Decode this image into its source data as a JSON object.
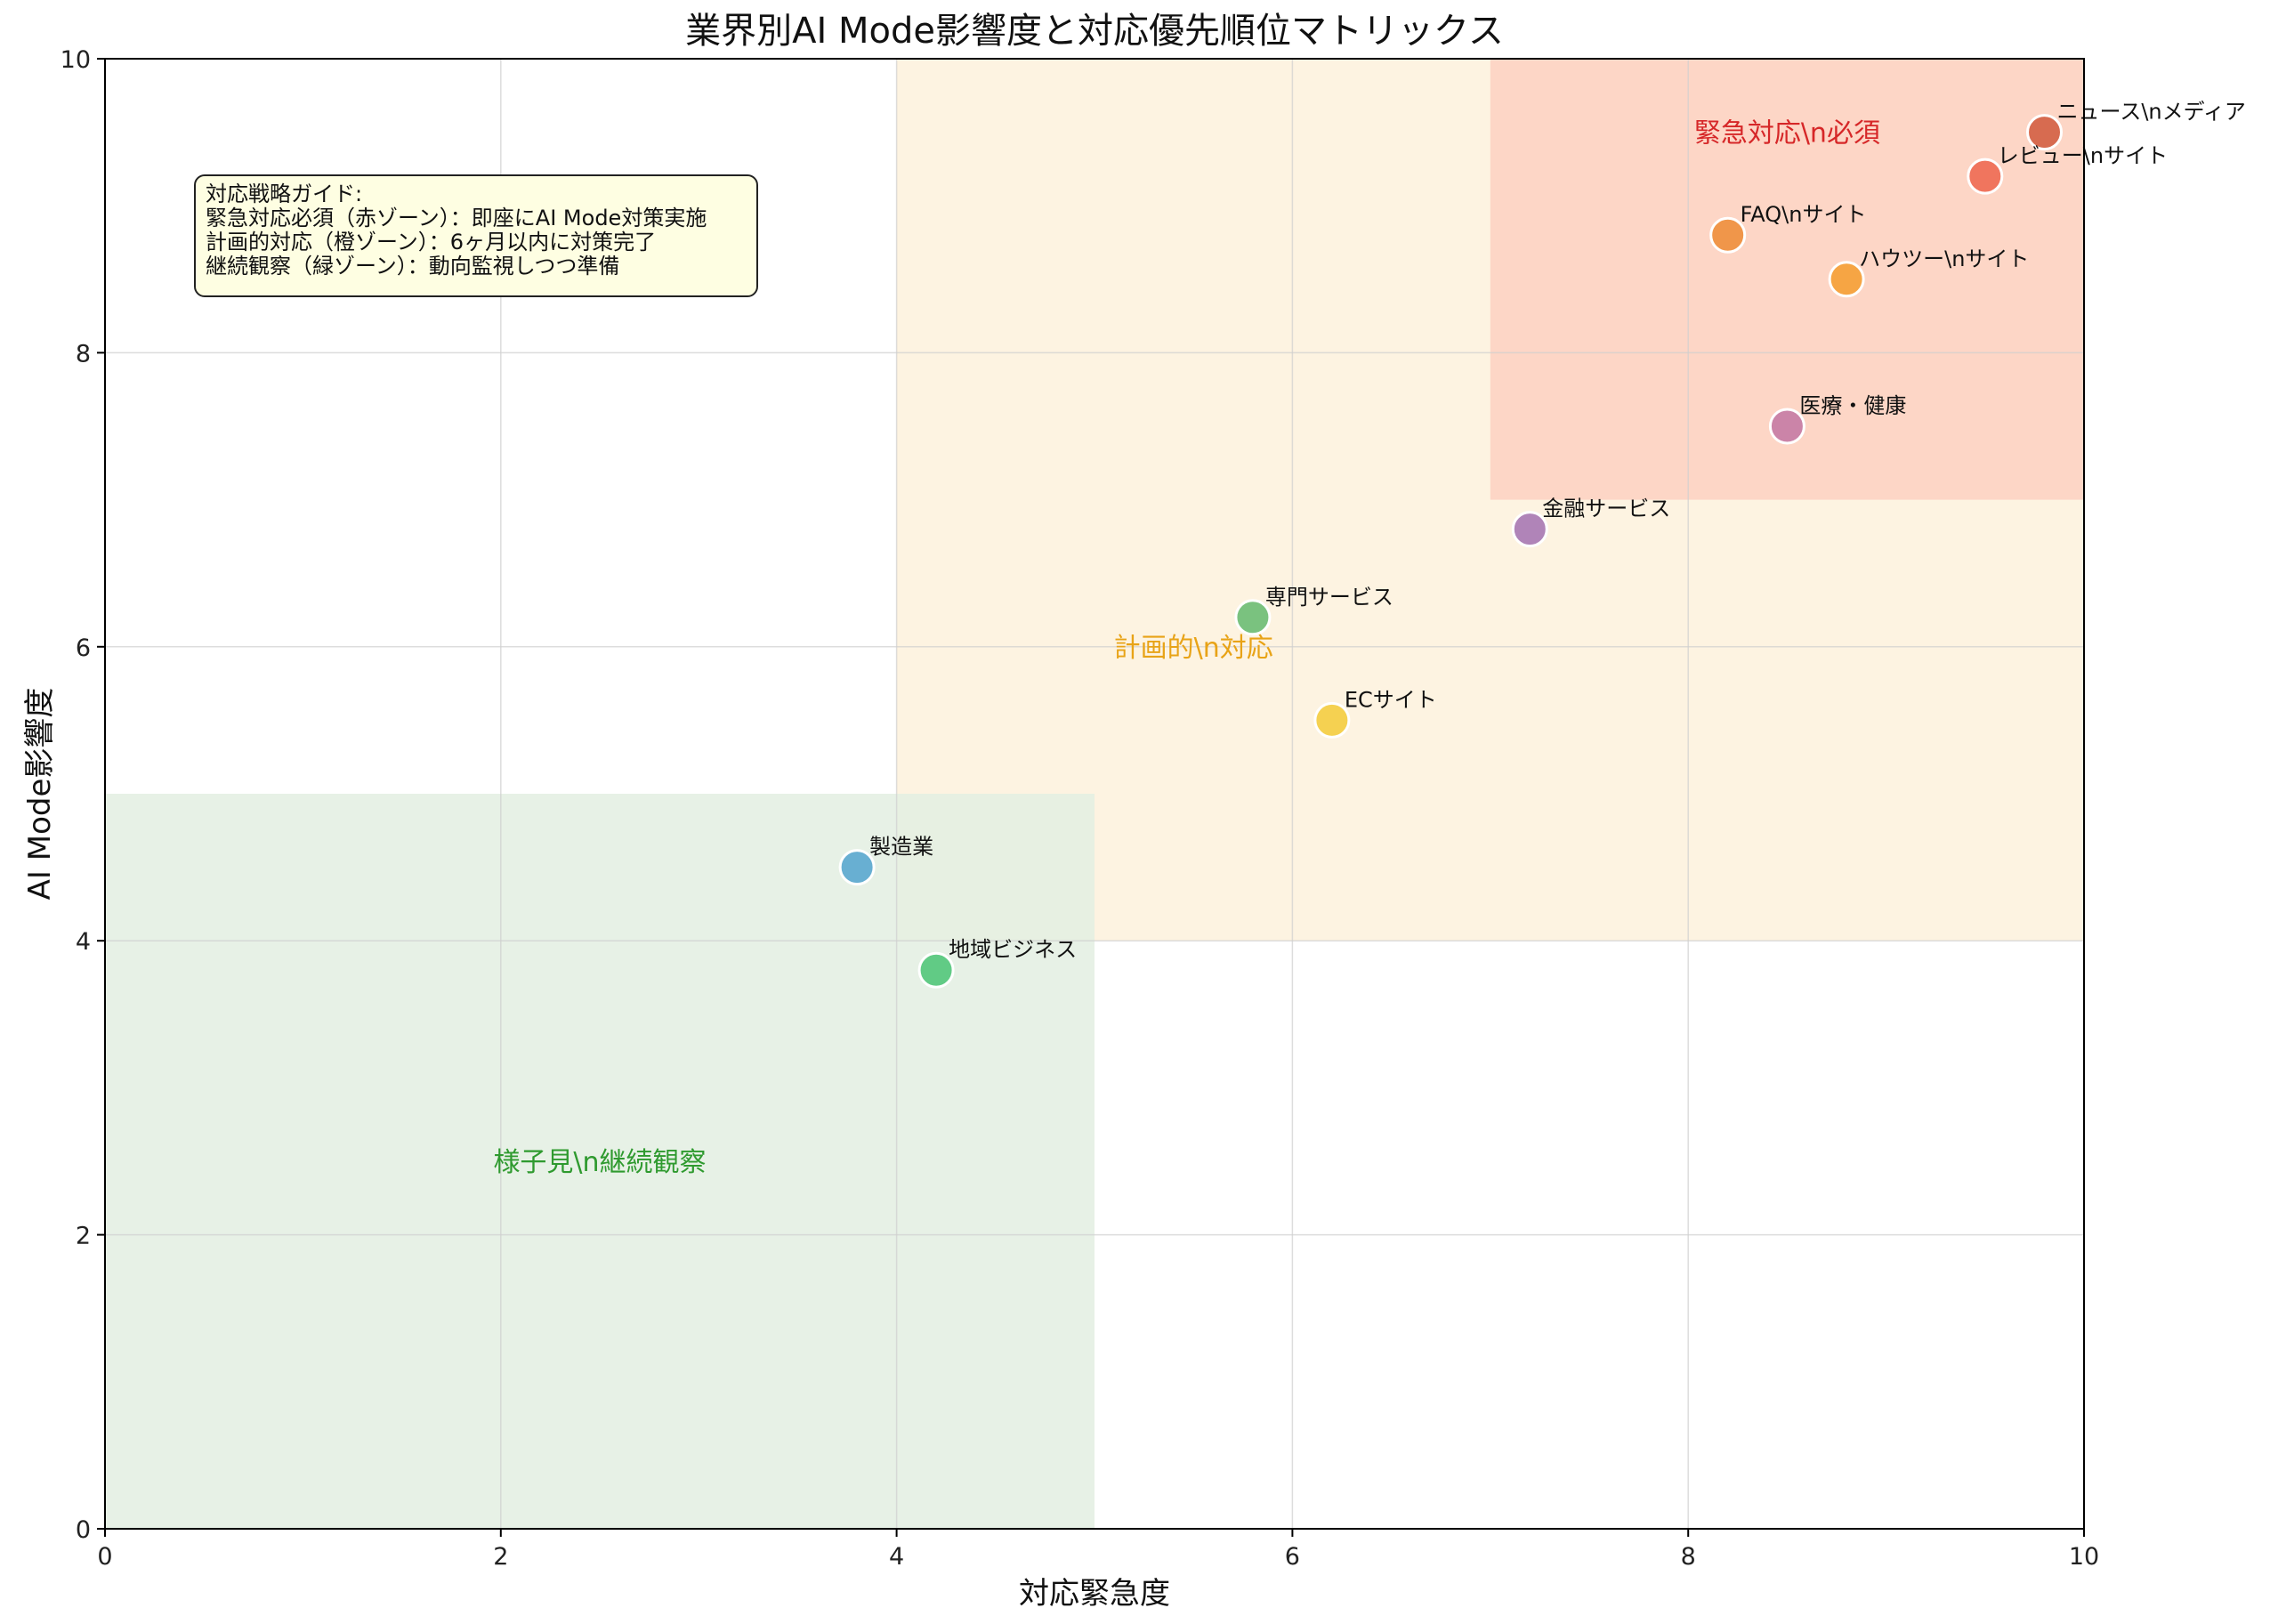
{
  "chart_data": {
    "type": "scatter",
    "title": "業界別AI Mode影響度と対応優先順位マトリックス",
    "xlabel": "対応緊急度",
    "ylabel": "AI Mode影響度",
    "xlim": [
      0,
      10
    ],
    "ylim": [
      0,
      10
    ],
    "xticks": [
      "0",
      "2",
      "4",
      "6",
      "8",
      "10"
    ],
    "yticks": [
      "0",
      "2",
      "4",
      "6",
      "8",
      "10"
    ],
    "grid": true,
    "zones": [
      {
        "name": "緊急対応\\n必須",
        "x": [
          7,
          10
        ],
        "y": [
          7,
          10
        ],
        "fill": "#fdd6c6",
        "label_color": "#d62728",
        "label_at": [
          8.5,
          9.5
        ]
      },
      {
        "name": "計画的\\n対応",
        "x": [
          4,
          10
        ],
        "y": [
          4,
          10
        ],
        "fill": "#fdf3e1",
        "label_color": "#e8a317",
        "label_at": [
          5.5,
          6.0
        ]
      },
      {
        "name": "様子見\\n継続観察",
        "x": [
          0,
          5
        ],
        "y": [
          0,
          5
        ],
        "fill": "#e3efe2",
        "label_color": "#2f9a2f",
        "label_at": [
          2.5,
          2.5
        ]
      }
    ],
    "points": [
      {
        "label": "ニュース\\nメディア",
        "x": 9.8,
        "y": 9.5,
        "color": "#d35f43"
      },
      {
        "label": "レビュー\\nサイト",
        "x": 9.5,
        "y": 9.2,
        "color": "#ee6a52"
      },
      {
        "label": "FAQ\\nサイト",
        "x": 8.2,
        "y": 8.8,
        "color": "#ee8f3c"
      },
      {
        "label": "ハウツー\\nサイト",
        "x": 8.8,
        "y": 8.5,
        "color": "#f5a035"
      },
      {
        "label": "医療・健康",
        "x": 8.5,
        "y": 7.5,
        "color": "#c57ba4"
      },
      {
        "label": "金融サービス",
        "x": 7.2,
        "y": 6.8,
        "color": "#a778b4"
      },
      {
        "label": "専門サービス",
        "x": 5.8,
        "y": 6.2,
        "color": "#6cbc74"
      },
      {
        "label": "ECサイト",
        "x": 6.2,
        "y": 5.5,
        "color": "#f4cd41"
      },
      {
        "label": "製造業",
        "x": 3.8,
        "y": 4.5,
        "color": "#5aa7cf"
      },
      {
        "label": "地域ビジネス",
        "x": 4.2,
        "y": 3.8,
        "color": "#52c77a"
      }
    ],
    "guide": {
      "lines": [
        "対応戦略ガイド:",
        "緊急対応必須（赤ゾーン）：即座にAI Mode対策実施",
        "計画的対応（橙ゾーン）：6ヶ月以内に対策完了",
        "継続観察（緑ゾーン）：動向監視しつつ準備"
      ]
    }
  }
}
